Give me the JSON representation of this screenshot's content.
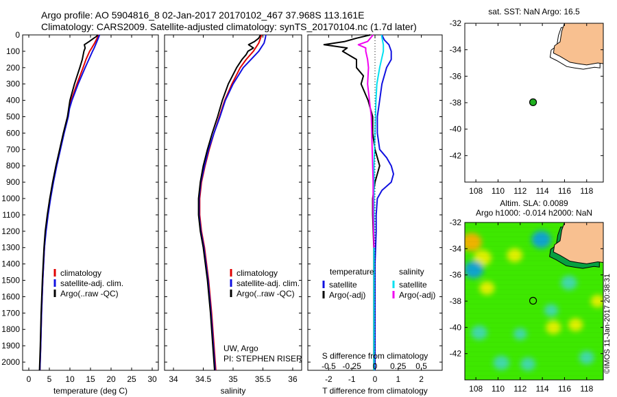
{
  "header": {
    "line1": "Argo profile: AO 5904816_8 02-Jan-2017 20170102_467 37.968S 113.161E",
    "line2": "Climatology: CARS2009. Satellite-adjusted climatology: synTS_20170104.nc (1.7d later)"
  },
  "colors": {
    "climatology": "#e00000",
    "satellite": "#1010e0",
    "argo": "#000000",
    "satellite_salinity": "#00e0f0",
    "argo_salinity": "#f000f0",
    "land": "#f8c090",
    "argo_marker": "#20b020"
  },
  "credit_text": "©IMOS 11-Jan-2017 20:38:31",
  "chart_data": [
    {
      "type": "line",
      "panel": "temperature",
      "xlabel": "temperature (deg C)",
      "ylabel": "",
      "xlim": [
        -1.5,
        31.5
      ],
      "ylim": [
        2050,
        0
      ],
      "xticks": [
        0,
        5,
        10,
        15,
        20,
        25,
        30
      ],
      "xtick_labels": [
        "0",
        "5",
        "10",
        "15",
        "20",
        "25",
        "30"
      ],
      "yticks": [
        0,
        100,
        200,
        300,
        400,
        500,
        600,
        700,
        800,
        900,
        1000,
        1100,
        1200,
        1300,
        1400,
        1500,
        1600,
        1700,
        1800,
        1900,
        2000
      ],
      "ytick_labels": [
        "0",
        "100",
        "200",
        "300",
        "400",
        "500",
        "600",
        "700",
        "800",
        "900",
        "1000",
        "1100",
        "1200",
        "1300",
        "1400",
        "1500",
        "1600",
        "1700",
        "1800",
        "1900",
        "2000"
      ],
      "legend": {
        "position": "lower-middle",
        "entries": [
          "climatology",
          "satellite-adj. clim.",
          "Argo(..raw -QC)"
        ]
      },
      "series": [
        {
          "name": "climatology",
          "color": "#e00000",
          "depth": [
            0,
            20,
            50,
            80,
            100,
            150,
            200,
            300,
            400,
            450,
            500,
            600,
            700,
            800,
            900,
            1000,
            1100,
            1200,
            1300,
            1500,
            1700,
            1900,
            2050
          ],
          "values": [
            17.0,
            16.6,
            16.0,
            15.3,
            14.8,
            13.9,
            13.2,
            11.7,
            10.3,
            9.8,
            9.5,
            8.5,
            7.6,
            6.7,
            5.9,
            5.2,
            4.6,
            4.1,
            3.8,
            3.4,
            3.1,
            2.9,
            2.7
          ]
        },
        {
          "name": "satellite-adj. clim.",
          "color": "#1010e0",
          "depth": [
            0,
            20,
            50,
            80,
            100,
            150,
            200,
            300,
            400,
            450,
            500,
            600,
            700,
            800,
            900,
            1000,
            1100,
            1200,
            1300,
            1500,
            1700,
            1900,
            2050
          ],
          "values": [
            17.2,
            16.9,
            16.4,
            15.9,
            15.5,
            14.6,
            13.7,
            12.0,
            10.5,
            9.9,
            9.6,
            8.6,
            7.7,
            6.8,
            6.0,
            5.3,
            4.7,
            4.2,
            3.8,
            3.4,
            3.1,
            2.9,
            2.7
          ]
        },
        {
          "name": "Argo(..raw -QC)",
          "color": "#000000",
          "depth": [
            0,
            10,
            20,
            40,
            60,
            80,
            100,
            150,
            200,
            300,
            400,
            450,
            500,
            600,
            700,
            800,
            900,
            1000,
            1100,
            1200,
            1300,
            1500,
            1700,
            1900,
            2050
          ],
          "values": [
            16.8,
            16.4,
            15.8,
            14.7,
            13.5,
            13.7,
            13.4,
            13.0,
            12.4,
            11.1,
            10.0,
            9.7,
            9.4,
            8.4,
            7.5,
            6.6,
            5.8,
            5.1,
            4.5,
            4.0,
            3.7,
            3.3,
            3.0,
            2.8,
            2.6
          ]
        }
      ]
    },
    {
      "type": "line",
      "panel": "salinity",
      "xlabel": "salinity",
      "xlim": [
        33.85,
        36.15
      ],
      "ylim": [
        2050,
        0
      ],
      "xticks": [
        34,
        34.5,
        35,
        35.5,
        36
      ],
      "xtick_labels": [
        "34",
        "34.5",
        "35",
        "35.5",
        "36"
      ],
      "legend": {
        "position": "lower-middle",
        "entries": [
          "climatology",
          "satellite-adj. clim.",
          "Argo(..raw -QC)"
        ]
      },
      "annotations": [
        "UW, Argo",
        "PI: STEPHEN RISER"
      ],
      "series": [
        {
          "name": "climatology",
          "color": "#e00000",
          "depth": [
            0,
            20,
            50,
            100,
            150,
            200,
            300,
            400,
            500,
            600,
            700,
            800,
            900,
            1000,
            1100,
            1200,
            1300,
            1500,
            1700,
            1900,
            2050
          ],
          "values": [
            35.48,
            35.46,
            35.43,
            35.34,
            35.22,
            35.12,
            34.98,
            34.86,
            34.77,
            34.68,
            34.6,
            34.53,
            34.47,
            34.44,
            34.44,
            34.47,
            34.52,
            34.59,
            34.64,
            34.68,
            34.71
          ]
        },
        {
          "name": "satellite-adj. clim.",
          "color": "#1010e0",
          "depth": [
            0,
            20,
            50,
            100,
            150,
            200,
            300,
            400,
            500,
            600,
            700,
            800,
            900,
            1000,
            1100,
            1200,
            1300,
            1500,
            1700,
            1900,
            2050
          ],
          "values": [
            35.55,
            35.54,
            35.52,
            35.43,
            35.3,
            35.17,
            35.0,
            34.87,
            34.78,
            34.68,
            34.59,
            34.52,
            34.46,
            34.43,
            34.43,
            34.46,
            34.51,
            34.58,
            34.63,
            34.67,
            34.7
          ]
        },
        {
          "name": "Argo(..raw -QC)",
          "color": "#000000",
          "depth": [
            0,
            20,
            40,
            60,
            80,
            100,
            120,
            150,
            200,
            300,
            400,
            500,
            600,
            700,
            800,
            900,
            1000,
            1100,
            1200,
            1300,
            1500,
            1700,
            1900,
            2050
          ],
          "values": [
            35.46,
            35.43,
            35.36,
            35.26,
            35.34,
            35.25,
            35.22,
            35.15,
            35.06,
            34.92,
            34.82,
            34.74,
            34.65,
            34.57,
            34.5,
            34.45,
            34.42,
            34.42,
            34.45,
            34.5,
            34.57,
            34.62,
            34.66,
            34.69
          ]
        }
      ]
    },
    {
      "type": "line",
      "panel": "difference",
      "xlabel": "T difference from climatology",
      "xlabel_top": "S difference from climatology",
      "xlim": [
        -2.9,
        2.9
      ],
      "ylim": [
        2050,
        0
      ],
      "xticks": [
        -2,
        -1,
        0,
        1,
        2
      ],
      "xtick_labels": [
        "-2",
        "-1",
        "0",
        "1",
        "2"
      ],
      "xticks_top": [
        -0.5,
        -0.25,
        0,
        0.25,
        0.5
      ],
      "xtick_labels_top": [
        "-0.5",
        "-0.25",
        "0",
        "0.25",
        "0.5"
      ],
      "legend": {
        "position": "lower-middle",
        "headers": [
          "temperature",
          "salinity"
        ],
        "entries": [
          "satellite",
          "Argo(-adj)",
          "satellite",
          "Argo(-adj)"
        ]
      },
      "series": [
        {
          "name": "satellite",
          "color": "#1010e0",
          "quantity": "temperature",
          "depth": [
            0,
            30,
            60,
            100,
            150,
            200,
            300,
            400,
            500,
            600,
            700,
            750,
            800,
            850,
            900,
            950,
            1000,
            1100,
            1200,
            1400,
            1700,
            2050
          ],
          "values": [
            0.3,
            0.4,
            0.6,
            0.7,
            0.7,
            0.5,
            0.3,
            0.2,
            0.1,
            0.1,
            0.2,
            0.5,
            0.7,
            0.8,
            0.7,
            0.3,
            0.1,
            0.05,
            0.05,
            0.0,
            0.0,
            0.0
          ]
        },
        {
          "name": "Argo(-adj)",
          "color": "#000000",
          "quantity": "temperature",
          "depth": [
            0,
            20,
            40,
            60,
            80,
            100,
            150,
            200,
            250,
            300,
            400,
            500,
            600,
            700,
            800,
            900,
            1000,
            1100,
            1300,
            1700,
            2050
          ],
          "values": [
            -0.2,
            -0.8,
            -1.3,
            -2.2,
            -1.2,
            -1.4,
            -0.8,
            -0.8,
            -0.5,
            -0.6,
            -0.3,
            -0.1,
            -0.1,
            0.0,
            0.2,
            0.0,
            -0.1,
            -0.1,
            -0.05,
            -0.05,
            -0.05
          ]
        },
        {
          "name": "satellite",
          "color": "#00e0f0",
          "quantity": "salinity",
          "depth": [
            0,
            30,
            60,
            100,
            200,
            300,
            400,
            600,
            800,
            1000,
            1300,
            1700,
            2050
          ],
          "values": [
            0.07,
            0.08,
            0.09,
            0.09,
            0.05,
            0.02,
            0.01,
            0.0,
            -0.01,
            -0.01,
            -0.01,
            -0.01,
            -0.01
          ]
        },
        {
          "name": "Argo(-adj)",
          "color": "#f000f0",
          "quantity": "salinity",
          "depth": [
            0,
            20,
            40,
            60,
            80,
            100,
            150,
            200,
            300,
            400,
            500,
            700,
            900,
            1100,
            1300
          ],
          "values": [
            -0.02,
            -0.05,
            -0.08,
            -0.18,
            -0.1,
            -0.1,
            -0.08,
            -0.07,
            -0.08,
            -0.06,
            -0.04,
            -0.03,
            -0.02,
            -0.02,
            -0.01
          ]
        }
      ]
    },
    {
      "type": "scatter",
      "panel": "sst_map",
      "title": "sat. SST: NaN Argo: 16.5",
      "xlim": [
        107,
        119.5
      ],
      "ylim": [
        -44,
        -32
      ],
      "xticks": [
        108,
        110,
        112,
        114,
        116,
        118
      ],
      "xtick_labels": [
        "108",
        "110",
        "112",
        "114",
        "116",
        "118"
      ],
      "yticks": [
        -32,
        -34,
        -36,
        -38,
        -40,
        -42
      ],
      "ytick_labels": [
        "-32",
        "-34",
        "-36",
        "-38",
        "-40",
        "-42"
      ],
      "points": [
        {
          "x": 113.161,
          "y": -37.968,
          "label": "Argo"
        }
      ]
    },
    {
      "type": "heatmap",
      "panel": "sla_map",
      "title": "Altim. SLA: 0.0089",
      "subtitle": "Argo h1000: -0.014 h2000: NaN",
      "xlim": [
        107,
        119.5
      ],
      "ylim": [
        -44,
        -32
      ],
      "xticks": [
        108,
        110,
        112,
        114,
        116,
        118
      ],
      "xtick_labels": [
        "108",
        "110",
        "112",
        "114",
        "116",
        "118"
      ],
      "yticks": [
        -32,
        -34,
        -36,
        -38,
        -40,
        -42
      ],
      "ytick_labels": [
        "-32",
        "-34",
        "-36",
        "-38",
        "-40",
        "-42"
      ],
      "points": [
        {
          "x": 113.161,
          "y": -37.968,
          "label": "Argo"
        }
      ],
      "blobs": [
        {
          "x": 107.6,
          "y": -33.5,
          "level": 1.0
        },
        {
          "x": 108.6,
          "y": -34.7,
          "level": 0.75
        },
        {
          "x": 107.8,
          "y": -35.6,
          "level": -0.9
        },
        {
          "x": 113.9,
          "y": -33.3,
          "level": -0.9
        },
        {
          "x": 111.5,
          "y": -34.5,
          "level": 0.55
        },
        {
          "x": 109.0,
          "y": -37.0,
          "level": 0.5
        },
        {
          "x": 116.4,
          "y": -36.6,
          "level": -0.6
        },
        {
          "x": 114.8,
          "y": -38.7,
          "level": -0.4
        },
        {
          "x": 115.0,
          "y": -40.0,
          "level": 0.5
        },
        {
          "x": 108.3,
          "y": -40.4,
          "level": -0.6
        },
        {
          "x": 112.7,
          "y": -42.8,
          "level": -0.5
        },
        {
          "x": 110.3,
          "y": -42.7,
          "level": -0.6
        },
        {
          "x": 118.0,
          "y": -42.3,
          "level": -0.5
        },
        {
          "x": 117.0,
          "y": -39.8,
          "level": 0.45
        },
        {
          "x": 112.0,
          "y": -40.5,
          "level": -0.35
        },
        {
          "x": 119.0,
          "y": -38.0,
          "level": 0.4
        }
      ]
    }
  ]
}
